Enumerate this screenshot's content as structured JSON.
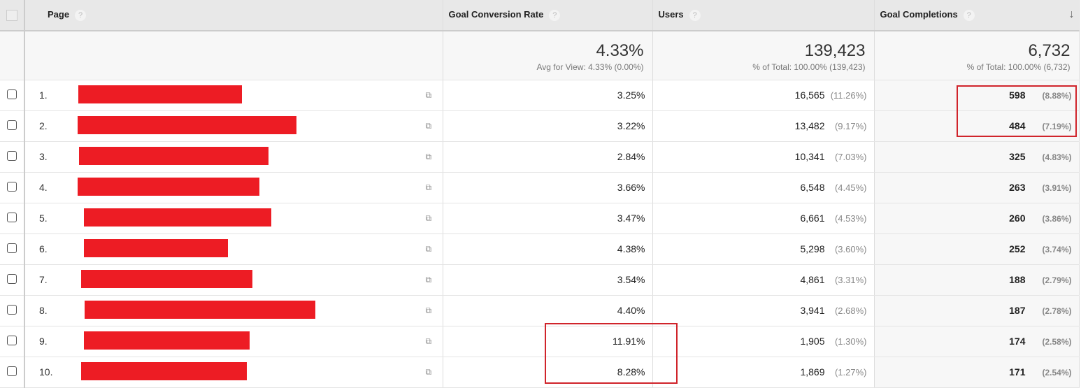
{
  "columns": {
    "page": "Page",
    "gcr": "Goal Conversion Rate",
    "users": "Users",
    "gc": "Goal Completions",
    "help": "?"
  },
  "summary": {
    "gcr": {
      "value": "4.33%",
      "sub": "Avg for View: 4.33% (0.00%)"
    },
    "users": {
      "value": "139,423",
      "sub": "% of Total: 100.00% (139,423)"
    },
    "gc": {
      "value": "6,732",
      "sub": "% of Total: 100.00% (6,732)"
    }
  },
  "rows": [
    {
      "idx": "1.",
      "gcr": "3.25%",
      "users": "16,565",
      "users_pct": "(11.26%)",
      "gc": "598",
      "gc_pct": "(8.88%)"
    },
    {
      "idx": "2.",
      "gcr": "3.22%",
      "users": "13,482",
      "users_pct": "(9.17%)",
      "gc": "484",
      "gc_pct": "(7.19%)"
    },
    {
      "idx": "3.",
      "gcr": "2.84%",
      "users": "10,341",
      "users_pct": "(7.03%)",
      "gc": "325",
      "gc_pct": "(4.83%)"
    },
    {
      "idx": "4.",
      "gcr": "3.66%",
      "users": "6,548",
      "users_pct": "(4.45%)",
      "gc": "263",
      "gc_pct": "(3.91%)"
    },
    {
      "idx": "5.",
      "gcr": "3.47%",
      "users": "6,661",
      "users_pct": "(4.53%)",
      "gc": "260",
      "gc_pct": "(3.86%)"
    },
    {
      "idx": "6.",
      "gcr": "4.38%",
      "users": "5,298",
      "users_pct": "(3.60%)",
      "gc": "252",
      "gc_pct": "(3.74%)"
    },
    {
      "idx": "7.",
      "gcr": "3.54%",
      "users": "4,861",
      "users_pct": "(3.31%)",
      "gc": "188",
      "gc_pct": "(2.79%)"
    },
    {
      "idx": "8.",
      "gcr": "4.40%",
      "users": "3,941",
      "users_pct": "(2.68%)",
      "gc": "187",
      "gc_pct": "(2.78%)"
    },
    {
      "idx": "9.",
      "gcr": "11.91%",
      "users": "1,905",
      "users_pct": "(1.30%)",
      "gc": "174",
      "gc_pct": "(2.58%)"
    },
    {
      "idx": "10.",
      "gcr": "8.28%",
      "users": "1,869",
      "users_pct": "(1.27%)",
      "gc": "171",
      "gc_pct": "(2.54%)"
    }
  ],
  "colors": {
    "redaction": "#ed1c24",
    "highlight": "#d0242b"
  }
}
